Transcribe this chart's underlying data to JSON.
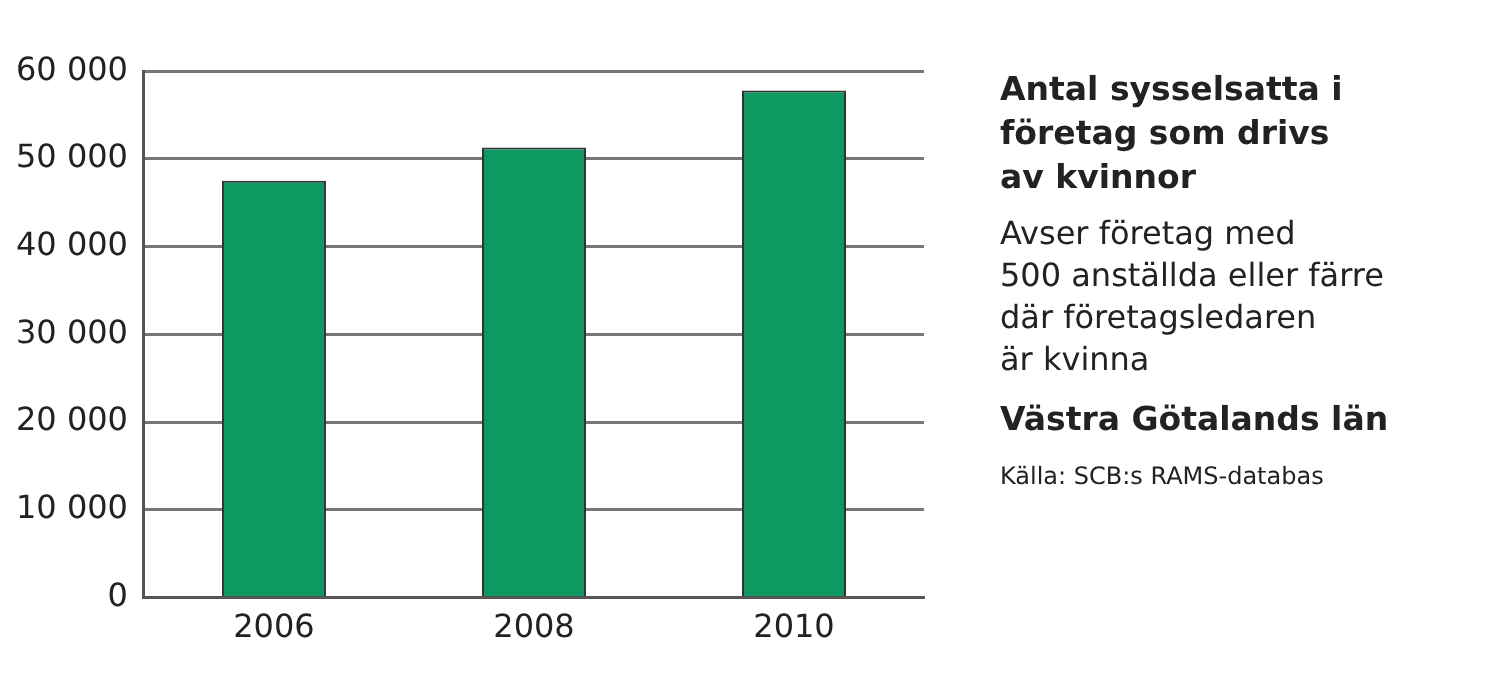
{
  "chart_data": {
    "type": "bar",
    "title": "Antal sysselsatta i\nföretag som drivs\nav kvinnor",
    "subtitle": "Avser företag med\n500 anställda eller färre\ndär företagsledaren\när kvinna",
    "annotations": [
      "Västra Götalands län",
      "Källa: SCB:s RAMS-databas"
    ],
    "categories": [
      "2006",
      "2008",
      "2010"
    ],
    "values": [
      47500,
      51300,
      57800
    ],
    "color": "#0f9962",
    "ylim": [
      0,
      60000
    ],
    "yticks": [
      {
        "value": 0,
        "label": "0"
      },
      {
        "value": 10000,
        "label": "10 000"
      },
      {
        "value": 20000,
        "label": "20 000"
      },
      {
        "value": 30000,
        "label": "30 000"
      },
      {
        "value": 40000,
        "label": "40 000"
      },
      {
        "value": 50000,
        "label": "50 000"
      },
      {
        "value": 60000,
        "label": "60 000"
      }
    ],
    "grid": "y",
    "legend": false
  }
}
